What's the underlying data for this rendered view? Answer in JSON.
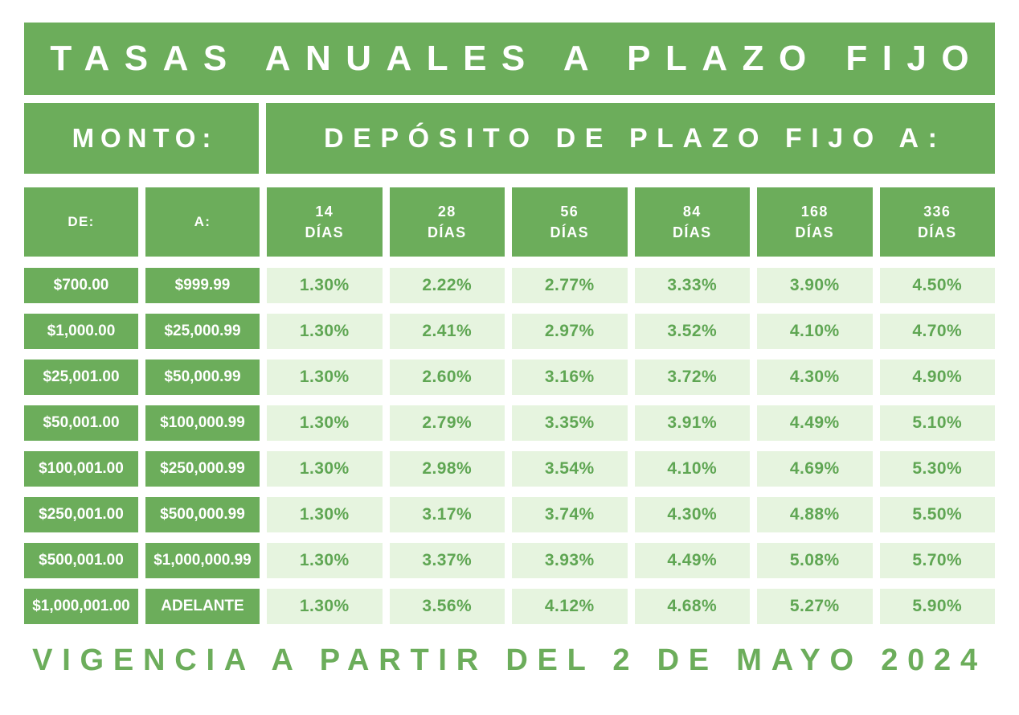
{
  "title": "TASAS ANUALES A PLAZO FIJO",
  "monto_label": "MONTO:",
  "deposito_label": "DEPÓSITO DE PLAZO FIJO A:",
  "columns": {
    "de": "DE:",
    "a": "A:",
    "terms": [
      {
        "days": "14",
        "unit": "DÍAS"
      },
      {
        "days": "28",
        "unit": "DÍAS"
      },
      {
        "days": "56",
        "unit": "DÍAS"
      },
      {
        "days": "84",
        "unit": "DÍAS"
      },
      {
        "days": "168",
        "unit": "DÍAS"
      },
      {
        "days": "336",
        "unit": "DÍAS"
      }
    ]
  },
  "table": {
    "rows": [
      {
        "de": "$700.00",
        "a": "$999.99",
        "rates": [
          "1.30%",
          "2.22%",
          "2.77%",
          "3.33%",
          "3.90%",
          "4.50%"
        ]
      },
      {
        "de": "$1,000.00",
        "a": "$25,000.99",
        "rates": [
          "1.30%",
          "2.41%",
          "2.97%",
          "3.52%",
          "4.10%",
          "4.70%"
        ]
      },
      {
        "de": "$25,001.00",
        "a": "$50,000.99",
        "rates": [
          "1.30%",
          "2.60%",
          "3.16%",
          "3.72%",
          "4.30%",
          "4.90%"
        ]
      },
      {
        "de": "$50,001.00",
        "a": "$100,000.99",
        "rates": [
          "1.30%",
          "2.79%",
          "3.35%",
          "3.91%",
          "4.49%",
          "5.10%"
        ]
      },
      {
        "de": "$100,001.00",
        "a": "$250,000.99",
        "rates": [
          "1.30%",
          "2.98%",
          "3.54%",
          "4.10%",
          "4.69%",
          "5.30%"
        ]
      },
      {
        "de": "$250,001.00",
        "a": "$500,000.99",
        "rates": [
          "1.30%",
          "3.17%",
          "3.74%",
          "4.30%",
          "4.88%",
          "5.50%"
        ]
      },
      {
        "de": "$500,001.00",
        "a": "$1,000,000.99",
        "rates": [
          "1.30%",
          "3.37%",
          "3.93%",
          "4.49%",
          "5.08%",
          "5.70%"
        ]
      },
      {
        "de": "$1,000,001.00",
        "a": "ADELANTE",
        "rates": [
          "1.30%",
          "3.56%",
          "4.12%",
          "4.68%",
          "5.27%",
          "5.90%"
        ]
      }
    ]
  },
  "footer": "VIGENCIA A PARTIR DEL 2 DE MAYO 2024",
  "colors": {
    "green": "#6cad5b",
    "light_green": "#e6f4df",
    "rate_text": "#5fa653",
    "text_on_green": "#ffffff",
    "background": "#ffffff"
  },
  "chart_data": {
    "type": "table",
    "title": "TASAS ANUALES A PLAZO FIJO",
    "subtitle": "DEPÓSITO DE PLAZO FIJO A:",
    "columns": [
      "DE:",
      "A:",
      "14 DÍAS",
      "28 DÍAS",
      "56 DÍAS",
      "84 DÍAS",
      "168 DÍAS",
      "336 DÍAS"
    ],
    "rows": [
      [
        "$700.00",
        "$999.99",
        "1.30%",
        "2.22%",
        "2.77%",
        "3.33%",
        "3.90%",
        "4.50%"
      ],
      [
        "$1,000.00",
        "$25,000.99",
        "1.30%",
        "2.41%",
        "2.97%",
        "3.52%",
        "4.10%",
        "4.70%"
      ],
      [
        "$25,001.00",
        "$50,000.99",
        "1.30%",
        "2.60%",
        "3.16%",
        "3.72%",
        "4.30%",
        "4.90%"
      ],
      [
        "$50,001.00",
        "$100,000.99",
        "1.30%",
        "2.79%",
        "3.35%",
        "3.91%",
        "4.49%",
        "5.10%"
      ],
      [
        "$100,001.00",
        "$250,000.99",
        "1.30%",
        "2.98%",
        "3.54%",
        "4.10%",
        "4.69%",
        "5.30%"
      ],
      [
        "$250,001.00",
        "$500,000.99",
        "1.30%",
        "3.17%",
        "3.74%",
        "4.30%",
        "4.88%",
        "5.50%"
      ],
      [
        "$500,001.00",
        "$1,000,000.99",
        "1.30%",
        "3.37%",
        "3.93%",
        "4.49%",
        "5.08%",
        "5.70%"
      ],
      [
        "$1,000,001.00",
        "ADELANTE",
        "1.30%",
        "3.56%",
        "4.12%",
        "4.68%",
        "5.27%",
        "5.90%"
      ]
    ],
    "annotations": [
      "VIGENCIA A PARTIR DEL 2 DE MAYO 2024"
    ]
  }
}
